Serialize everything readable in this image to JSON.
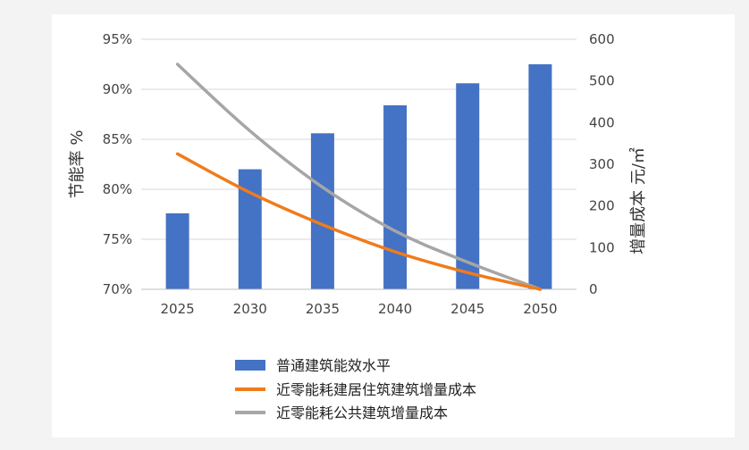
{
  "chart_data": {
    "type": "bar+line",
    "categories": [
      "2025",
      "2030",
      "2035",
      "2040",
      "2045",
      "2050"
    ],
    "bar_series": {
      "name": "普通建筑能效水平",
      "axis": "left",
      "values": [
        77.6,
        82.0,
        85.6,
        88.4,
        90.6,
        92.5
      ],
      "color": "#4472c4"
    },
    "line_series": [
      {
        "name": "近零能耗建居住筑建筑增量成本",
        "axis": "right",
        "values": [
          325,
          232,
          155,
          90,
          40,
          0
        ],
        "color": "#f07b1c"
      },
      {
        "name": "近零能耗公共建筑增量成本",
        "axis": "right",
        "values": [
          540,
          380,
          245,
          140,
          65,
          0
        ],
        "color": "#a6a6a6"
      }
    ],
    "left_axis": {
      "label": "节能率 %",
      "ylim": [
        70,
        95
      ],
      "ticks": [
        "70%",
        "75%",
        "80%",
        "85%",
        "90%",
        "95%"
      ]
    },
    "right_axis": {
      "label": "增量成本 元/㎡",
      "ylim": [
        0,
        600
      ],
      "ticks": [
        "0",
        "100",
        "200",
        "300",
        "400",
        "500",
        "600"
      ]
    },
    "grid": true,
    "legend_position": "bottom"
  }
}
